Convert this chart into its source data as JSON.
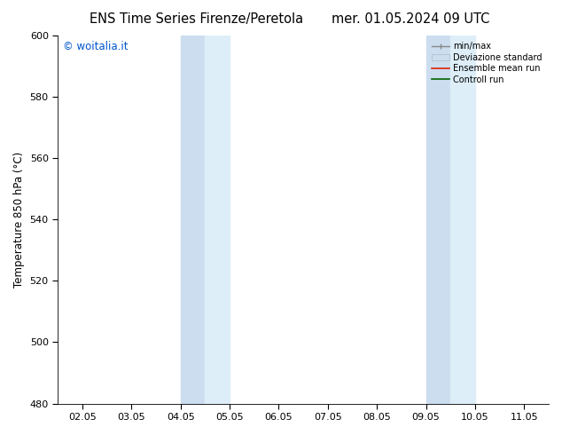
{
  "title_left": "ENS Time Series Firenze/Peretola",
  "title_right": "mer. 01.05.2024 09 UTC",
  "ylabel": "Temperature 850 hPa (°C)",
  "ylim": [
    480,
    600
  ],
  "yticks": [
    480,
    500,
    520,
    540,
    560,
    580,
    600
  ],
  "xtick_labels": [
    "02.05",
    "03.05",
    "04.05",
    "05.05",
    "06.05",
    "07.05",
    "08.05",
    "09.05",
    "10.05",
    "11.05"
  ],
  "xtick_positions": [
    0,
    1,
    2,
    3,
    4,
    5,
    6,
    7,
    8,
    9
  ],
  "xlim": [
    -0.5,
    9.5
  ],
  "blue_bands": [
    {
      "xstart": 2,
      "xend": 2.5
    },
    {
      "xstart": 2.5,
      "xend": 3
    },
    {
      "xstart": 7,
      "xend": 7.5
    },
    {
      "xstart": 7.5,
      "xend": 8
    }
  ],
  "band_color_dark": "#ccddef",
  "band_color_light": "#ddeef8",
  "watermark_text": "© woitalia.it",
  "watermark_color": "#0055cc",
  "legend_entries": [
    "min/max",
    "Deviazione standard",
    "Ensemble mean run",
    "Controll run"
  ],
  "background_color": "#ffffff",
  "title_fontsize": 10.5,
  "axis_fontsize": 8.5,
  "tick_fontsize": 8
}
